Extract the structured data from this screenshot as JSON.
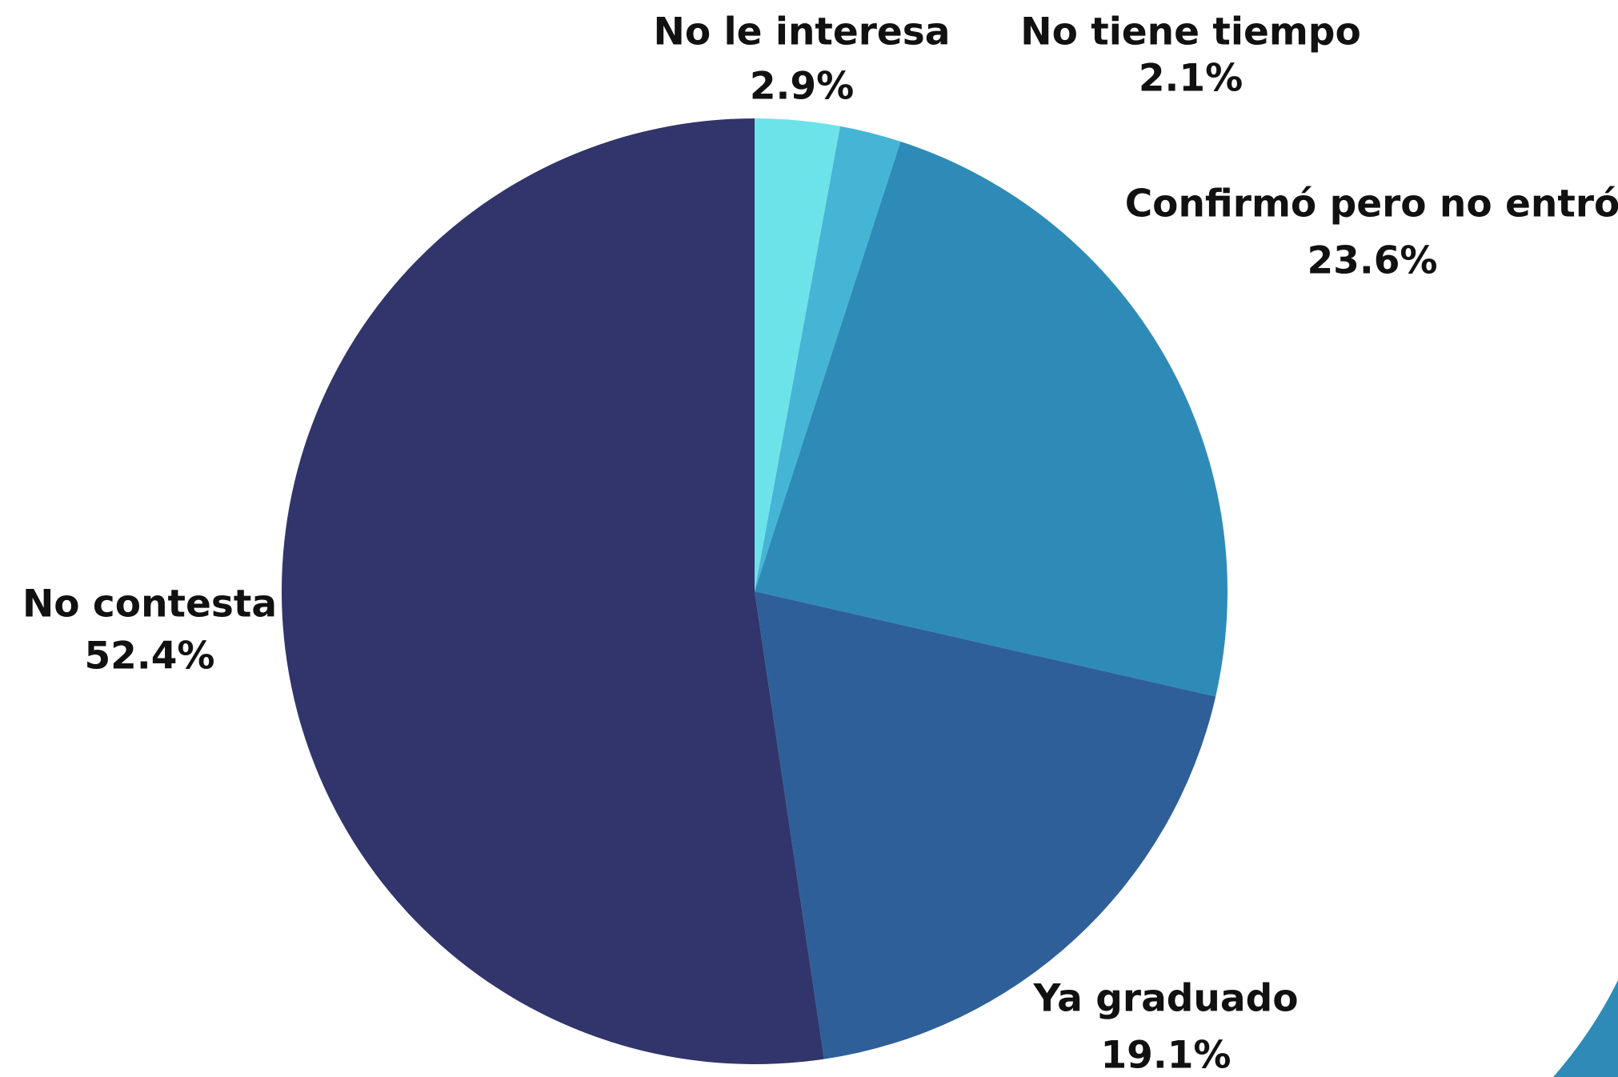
{
  "chart_data": {
    "type": "pie",
    "categories": [
      "No le interesa",
      "No tiene tiempo",
      "Confirmó pero no entró",
      "Ya graduado",
      "No contesta"
    ],
    "values": [
      2.9,
      2.1,
      23.6,
      19.1,
      52.4
    ],
    "value_labels": [
      "2.9%",
      "2.1%",
      "23.6%",
      "19.1%",
      "52.4%"
    ],
    "colors": [
      "#6ce3e8",
      "#45b5d6",
      "#2e8bb8",
      "#2f5f98",
      "#31356b"
    ]
  }
}
